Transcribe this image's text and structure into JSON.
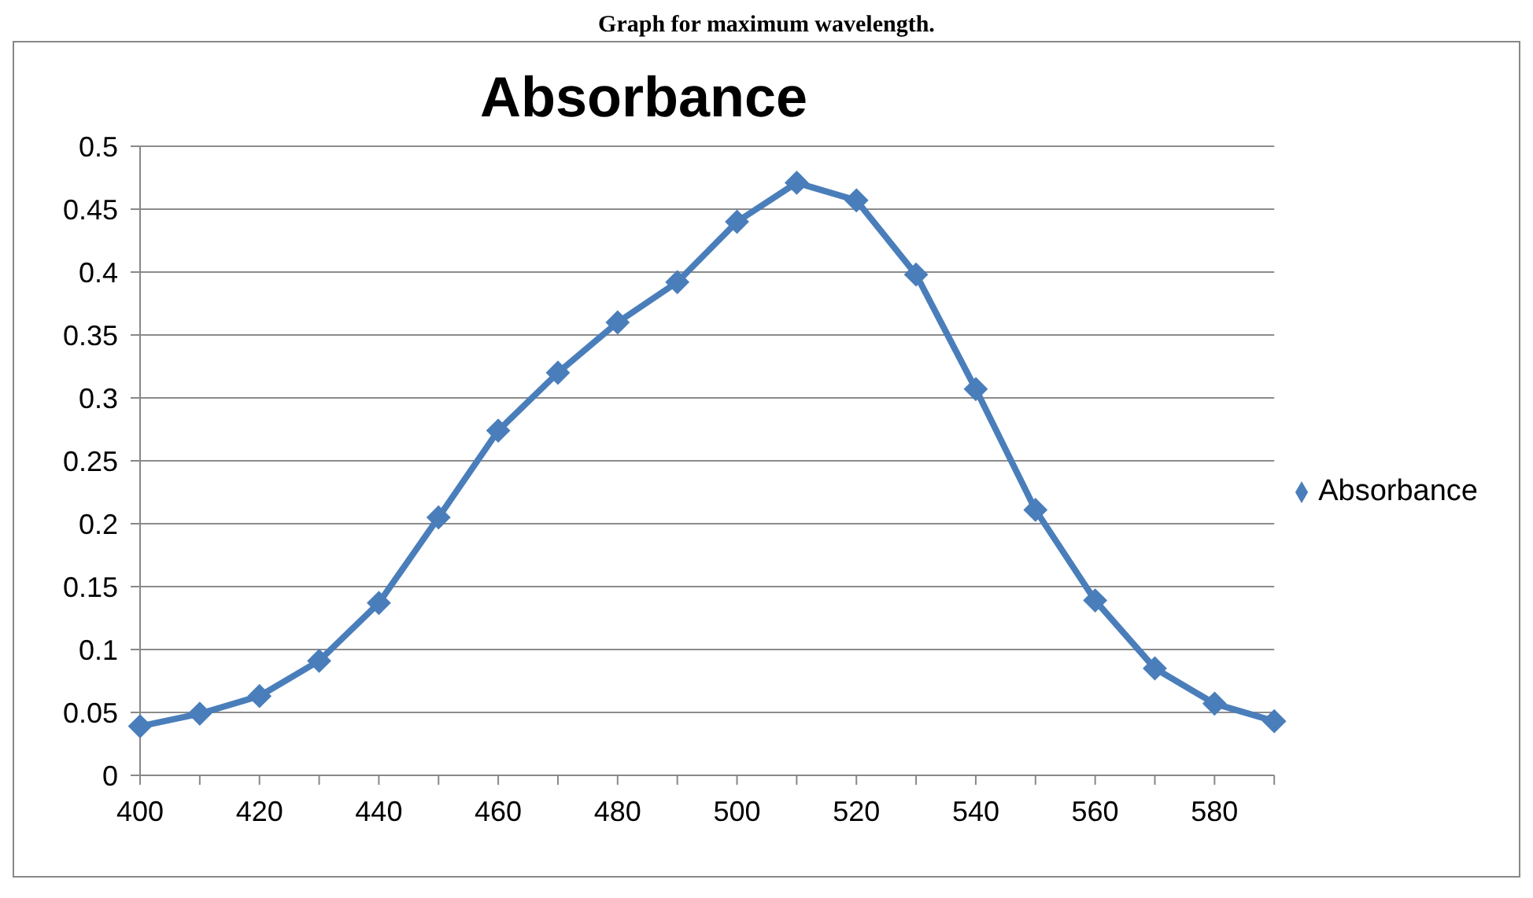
{
  "chart_data": {
    "type": "line",
    "title": "Absorbance",
    "annotations": [
      "Graph for maximum wavelength."
    ],
    "categories": [
      "400",
      null,
      "420",
      null,
      "440",
      null,
      "460",
      null,
      "480",
      null,
      "500",
      null,
      "520",
      null,
      "540",
      null,
      "560",
      null,
      "580",
      null
    ],
    "series": [
      {
        "name": "Absorbance",
        "color": "#4a7ebb",
        "values": [
          0.039,
          0.049,
          0.063,
          0.091,
          0.137,
          0.205,
          0.274,
          0.32,
          0.36,
          0.392,
          0.44,
          0.471,
          0.457,
          0.398,
          0.307,
          0.211,
          0.139,
          0.085,
          0.057,
          0.043
        ]
      }
    ],
    "ylim": [
      0,
      0.5
    ],
    "yticks": [
      0,
      0.05,
      0.1,
      0.15,
      0.2,
      0.25,
      0.3,
      0.35,
      0.4,
      0.45,
      0.5
    ],
    "grid": "y",
    "legend": "right",
    "marker": "diamond",
    "line_style": "solid"
  }
}
